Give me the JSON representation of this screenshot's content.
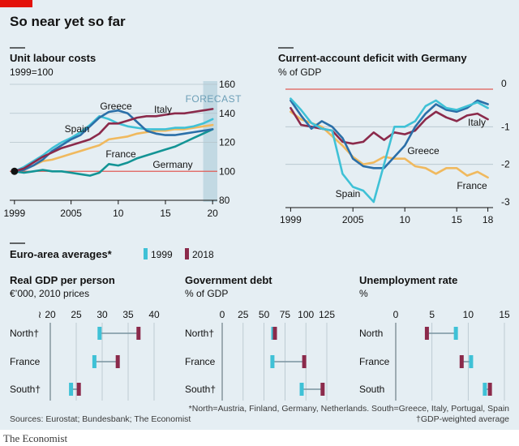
{
  "header": {
    "title": "So near yet so far"
  },
  "colors": {
    "background": "#e5eef3",
    "accent_red": "#e3120b",
    "Greece": "#2b6fa8",
    "Italy": "#8b2a4b",
    "Spain": "#3fc1d6",
    "France": "#f0b95e",
    "Germany": "#139495",
    "y1999": "#3fc1d6",
    "y2018": "#8b2a4b",
    "reference_line": "#e05c56",
    "connector": "#7a93a0",
    "forecast_band": "#b9d3df"
  },
  "chart_data": [
    {
      "type": "line",
      "title": "Unit labour costs",
      "subtitle": "1999=100",
      "x_ticks": [
        "1999",
        "2005",
        "10",
        "15",
        "20"
      ],
      "y_ticks": [
        "80",
        "100",
        "120",
        "140",
        "160"
      ],
      "ylim": [
        80,
        160
      ],
      "xlim": [
        1998.5,
        2020.5
      ],
      "baseline": 100,
      "forecast_label": "FORECAST",
      "forecast_range": [
        2019,
        2020
      ],
      "series": [
        {
          "name": "Greece",
          "x": [
            1999,
            2000,
            2001,
            2002,
            2003,
            2004,
            2005,
            2006,
            2007,
            2008,
            2009,
            2010,
            2011,
            2012,
            2013,
            2014,
            2015,
            2016,
            2017,
            2018,
            2019,
            2020
          ],
          "values": [
            100,
            101,
            104,
            108,
            114,
            118,
            122,
            125,
            131,
            137,
            141,
            142,
            140,
            134,
            128,
            126,
            125,
            125,
            126,
            127,
            128,
            129
          ]
        },
        {
          "name": "Italy",
          "x": [
            1999,
            2000,
            2001,
            2002,
            2003,
            2004,
            2005,
            2006,
            2007,
            2008,
            2009,
            2010,
            2011,
            2012,
            2013,
            2014,
            2015,
            2016,
            2017,
            2018,
            2019,
            2020
          ],
          "values": [
            100,
            102,
            106,
            110,
            113,
            116,
            118,
            120,
            122,
            126,
            133,
            133,
            135,
            137,
            138,
            138,
            139,
            140,
            140,
            141,
            142,
            143
          ]
        },
        {
          "name": "Spain",
          "x": [
            1999,
            2000,
            2001,
            2002,
            2003,
            2004,
            2005,
            2006,
            2007,
            2008,
            2009,
            2010,
            2011,
            2012,
            2013,
            2014,
            2015,
            2016,
            2017,
            2018,
            2019,
            2020
          ],
          "values": [
            100,
            103,
            107,
            111,
            116,
            120,
            123,
            127,
            132,
            138,
            136,
            133,
            131,
            130,
            129,
            129,
            129,
            130,
            130,
            131,
            133,
            136
          ]
        },
        {
          "name": "France",
          "x": [
            1999,
            2000,
            2001,
            2002,
            2003,
            2004,
            2005,
            2006,
            2007,
            2008,
            2009,
            2010,
            2011,
            2012,
            2013,
            2014,
            2015,
            2016,
            2017,
            2018,
            2019,
            2020
          ],
          "values": [
            100,
            101,
            104,
            107,
            108,
            110,
            112,
            114,
            116,
            118,
            122,
            123,
            124,
            126,
            127,
            128,
            128,
            129,
            129,
            130,
            131,
            132
          ]
        },
        {
          "name": "Germany",
          "x": [
            1999,
            2000,
            2001,
            2002,
            2003,
            2004,
            2005,
            2006,
            2007,
            2008,
            2009,
            2010,
            2011,
            2012,
            2013,
            2014,
            2015,
            2016,
            2017,
            2018,
            2019,
            2020
          ],
          "values": [
            100,
            99,
            100,
            101,
            100,
            100,
            99,
            98,
            97,
            99,
            105,
            104,
            106,
            109,
            111,
            113,
            115,
            117,
            120,
            123,
            126,
            129
          ]
        }
      ]
    },
    {
      "type": "line",
      "title": "Current-account deficit with Germany",
      "subtitle": "% of GDP",
      "x_ticks": [
        "1999",
        "2005",
        "10",
        "15",
        "18"
      ],
      "y_ticks": [
        "0",
        "-1",
        "-2",
        "-3"
      ],
      "ylim": [
        -3,
        0
      ],
      "xlim": [
        1998.5,
        2018.5
      ],
      "baseline": 0,
      "series": [
        {
          "name": "Spain",
          "x": [
            1999,
            2000,
            2001,
            2002,
            2003,
            2004,
            2005,
            2006,
            2007,
            2008,
            2009,
            2010,
            2011,
            2012,
            2013,
            2014,
            2015,
            2016,
            2017,
            2018
          ],
          "values": [
            -0.25,
            -0.55,
            -0.9,
            -1.05,
            -1.1,
            -2.25,
            -2.6,
            -2.7,
            -3.0,
            -2.0,
            -1.0,
            -1.0,
            -0.85,
            -0.45,
            -0.3,
            -0.5,
            -0.55,
            -0.45,
            -0.35,
            -0.5
          ]
        },
        {
          "name": "Greece",
          "x": [
            1999,
            2000,
            2001,
            2002,
            2003,
            2004,
            2005,
            2006,
            2007,
            2008,
            2009,
            2010,
            2011,
            2012,
            2013,
            2014,
            2015,
            2016,
            2017,
            2018
          ],
          "values": [
            -0.3,
            -0.7,
            -1.05,
            -0.85,
            -1.0,
            -1.3,
            -1.85,
            -2.05,
            -2.1,
            -2.1,
            -1.8,
            -1.5,
            -1.0,
            -0.65,
            -0.4,
            -0.55,
            -0.6,
            -0.5,
            -0.3,
            -0.4
          ]
        },
        {
          "name": "Italy",
          "x": [
            1999,
            2000,
            2001,
            2002,
            2003,
            2004,
            2005,
            2006,
            2007,
            2008,
            2009,
            2010,
            2011,
            2012,
            2013,
            2014,
            2015,
            2016,
            2017,
            2018
          ],
          "values": [
            -0.5,
            -0.95,
            -1.0,
            -1.05,
            -1.1,
            -1.4,
            -1.45,
            -1.4,
            -1.15,
            -1.35,
            -1.15,
            -1.2,
            -1.1,
            -0.8,
            -0.6,
            -0.75,
            -0.85,
            -0.7,
            -0.65,
            -0.8
          ]
        },
        {
          "name": "France",
          "x": [
            1999,
            2000,
            2001,
            2002,
            2003,
            2004,
            2005,
            2006,
            2007,
            2008,
            2009,
            2010,
            2011,
            2012,
            2013,
            2014,
            2015,
            2016,
            2017,
            2018
          ],
          "values": [
            -0.6,
            -0.8,
            -0.9,
            -1.0,
            -1.25,
            -1.5,
            -1.8,
            -2.0,
            -1.95,
            -1.8,
            -1.85,
            -1.85,
            -2.05,
            -2.1,
            -2.25,
            -2.1,
            -2.1,
            -2.3,
            -2.2,
            -2.35
          ]
        }
      ]
    },
    {
      "type": "dot",
      "group_title": "Euro-area averages*",
      "legend": [
        "1999",
        "2018"
      ],
      "panels": [
        {
          "title": "Real GDP per person",
          "unit": "€’000, 2010 prices",
          "ticks": [
            "20",
            "25",
            "30",
            "35",
            "40"
          ],
          "xlim": [
            20,
            40
          ],
          "axis_break": true,
          "rows": [
            {
              "label": "North†",
              "v1999": 29.5,
              "v2018": 37
            },
            {
              "label": "France",
              "v1999": 28.5,
              "v2018": 33
            },
            {
              "label": "South†",
              "v1999": 24,
              "v2018": 25.5
            }
          ]
        },
        {
          "title": "Government debt",
          "unit": "% of GDP",
          "ticks": [
            "0",
            "25",
            "50",
            "75",
            "100",
            "125"
          ],
          "xlim": [
            0,
            125
          ],
          "rows": [
            {
              "label": "North†",
              "v1999": 61,
              "v2018": 63
            },
            {
              "label": "France",
              "v1999": 60,
              "v2018": 98
            },
            {
              "label": "South†",
              "v1999": 95,
              "v2018": 120
            }
          ]
        },
        {
          "title": "Unemployment rate",
          "unit": "%",
          "ticks": [
            "0",
            "5",
            "10",
            "15"
          ],
          "xlim": [
            0,
            15
          ],
          "rows": [
            {
              "label": "North",
              "v1999": 8.3,
              "v2018": 4.3
            },
            {
              "label": "France",
              "v1999": 10.4,
              "v2018": 9.1
            },
            {
              "label": "South",
              "v1999": 12.3,
              "v2018": 13
            }
          ]
        }
      ]
    }
  ],
  "footnotes": {
    "definition": "*North=Austria, Finland, Germany, Netherlands. South=Greece, Italy, Portugal, Spain",
    "weighting": "†GDP-weighted average",
    "sources": "Sources: Eurostat; Bundesbank; The Economist"
  },
  "brand": "The Economist"
}
